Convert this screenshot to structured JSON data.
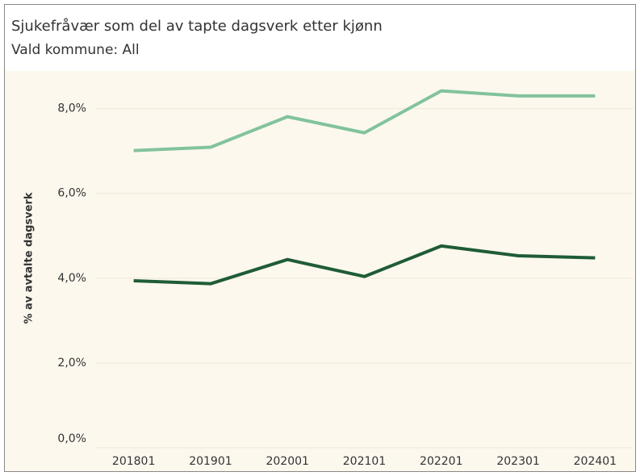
{
  "chart_data": {
    "type": "line",
    "title": "Sjukefråvær som del av tapte dagsverk etter kjønn",
    "subtitle": "Vald kommune: All",
    "ylabel": "% av avtalte dagsverk",
    "categories": [
      "201801",
      "201901",
      "202001",
      "202101",
      "202201",
      "202301",
      "202401"
    ],
    "series": [
      {
        "color": "#82c39c",
        "values": [
          7.01,
          7.09,
          7.81,
          7.43,
          8.42,
          8.3,
          8.3
        ]
      },
      {
        "color": "#1f5c36",
        "values": [
          3.94,
          3.87,
          4.44,
          4.04,
          4.76,
          4.53,
          4.48
        ]
      }
    ],
    "ylim": [
      0,
      8.85
    ],
    "yticks": [
      {
        "value": 0,
        "label": "0,0%"
      },
      {
        "value": 2,
        "label": "2,0%"
      },
      {
        "value": 4,
        "label": "4,0%"
      },
      {
        "value": 6,
        "label": "6,0%"
      },
      {
        "value": 8,
        "label": "8,0%"
      }
    ],
    "grid": true
  }
}
